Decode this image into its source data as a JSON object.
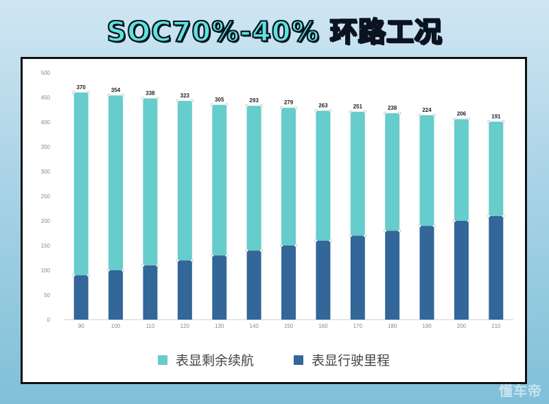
{
  "title": "SOC70%-40% 环路工况",
  "watermark": "懂车帝",
  "colors": {
    "remaining": "#66cccc",
    "driven": "#336699"
  },
  "chart_data": {
    "type": "bar",
    "stacked": true,
    "categories": [
      "90",
      "100",
      "110",
      "120",
      "130",
      "140",
      "150",
      "160",
      "170",
      "180",
      "190",
      "200",
      "210"
    ],
    "series": [
      {
        "name": "表显行驶里程",
        "values": [
          90,
          100,
          110,
          120,
          130,
          140,
          150,
          160,
          170,
          180,
          190,
          200,
          210
        ]
      },
      {
        "name": "表显剩余续航",
        "values": [
          370,
          354,
          338,
          323,
          305,
          293,
          279,
          263,
          251,
          238,
          224,
          206,
          191
        ]
      }
    ],
    "data_labels": [
      "370",
      "354",
      "338",
      "323",
      "305",
      "293",
      "279",
      "263",
      "251",
      "238",
      "224",
      "206",
      "191"
    ],
    "ylim": [
      0,
      500
    ],
    "yticks": [
      "0",
      "50",
      "100",
      "150",
      "200",
      "250",
      "300",
      "350",
      "400",
      "450",
      "500"
    ],
    "grid": false,
    "legend_position": "bottom",
    "legend": [
      "表显剩余续航",
      "表显行驶里程"
    ]
  }
}
